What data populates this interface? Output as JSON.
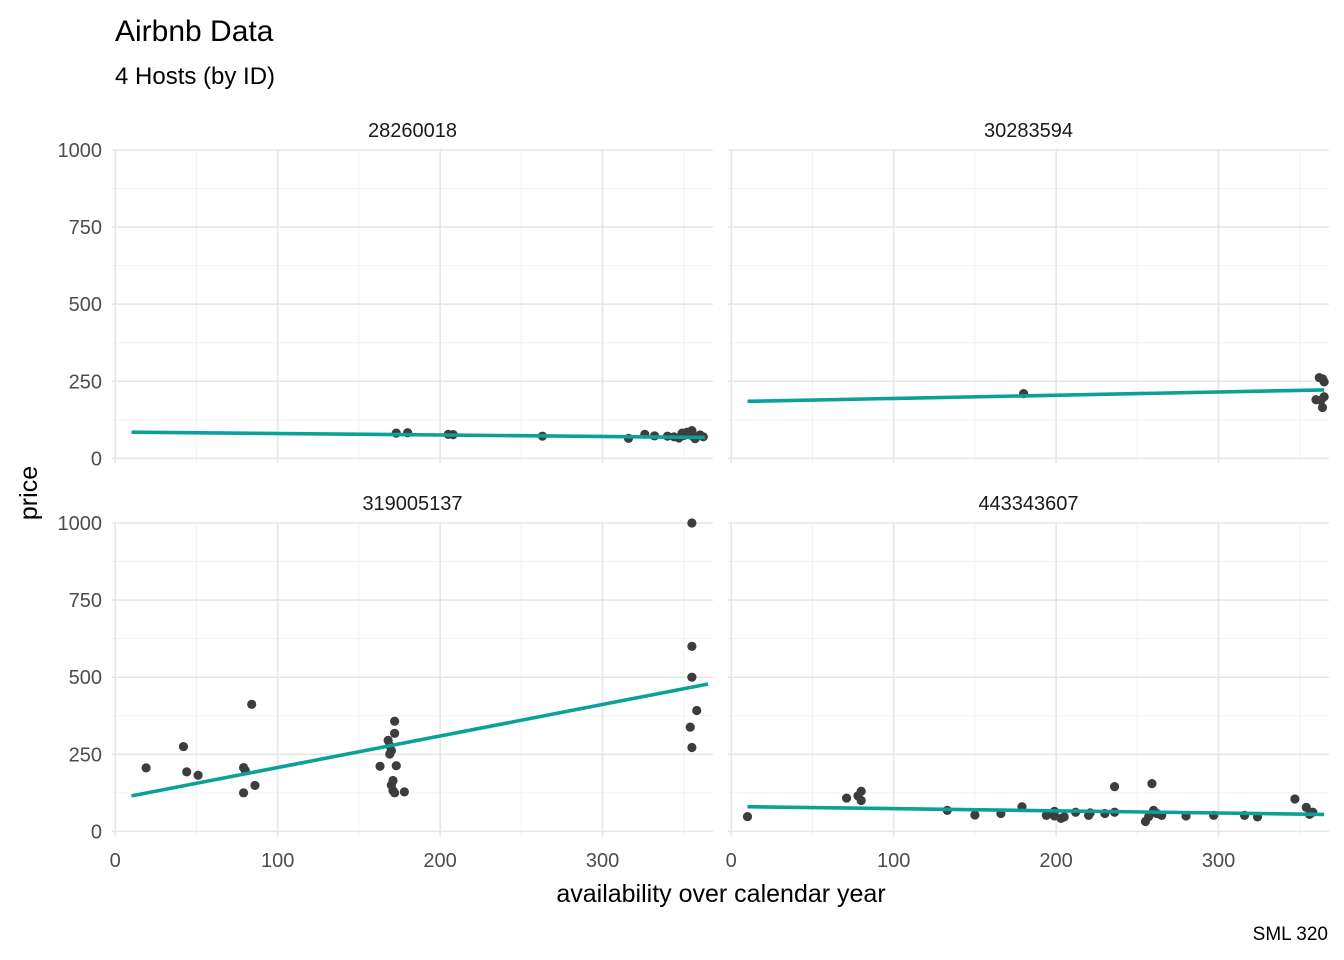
{
  "chart_data": {
    "type": "scatter",
    "title": "Airbnb Data",
    "subtitle": "4 Hosts (by ID)",
    "xlabel": "availability over calendar year",
    "ylabel": "price",
    "caption": "SML 320",
    "xlim": [
      -2,
      368
    ],
    "ylim": [
      -15,
      1000
    ],
    "x_ticks": [
      0,
      100,
      200,
      300
    ],
    "y_ticks": [
      0,
      250,
      500,
      750,
      1000
    ],
    "grid": true,
    "point_color": "#3d3d3d",
    "line_color": "#0ba197",
    "facets": [
      {
        "label": "28260018",
        "fit": {
          "x": [
            10,
            363
          ],
          "y": [
            85,
            68
          ]
        },
        "points": [
          [
            173,
            82
          ],
          [
            180,
            83
          ],
          [
            205,
            78
          ],
          [
            208,
            77
          ],
          [
            263,
            72
          ],
          [
            316,
            65
          ],
          [
            326,
            78
          ],
          [
            332,
            73
          ],
          [
            340,
            72
          ],
          [
            344,
            70
          ],
          [
            347,
            66
          ],
          [
            349,
            82
          ],
          [
            350,
            74
          ],
          [
            352,
            85
          ],
          [
            353,
            77
          ],
          [
            355,
            90
          ],
          [
            356,
            70
          ],
          [
            357,
            64
          ],
          [
            360,
            76
          ],
          [
            362,
            70
          ]
        ]
      },
      {
        "label": "30283594",
        "fit": {
          "x": [
            10,
            365
          ],
          "y": [
            185,
            222
          ]
        },
        "points": [
          [
            180,
            210
          ],
          [
            362,
            262
          ],
          [
            364,
            258
          ],
          [
            365,
            248
          ],
          [
            360,
            190
          ],
          [
            363,
            188
          ],
          [
            365,
            200
          ],
          [
            364,
            165
          ]
        ]
      },
      {
        "label": "319005137",
        "fit": {
          "x": [
            10,
            365
          ],
          "y": [
            115,
            478
          ]
        },
        "points": [
          [
            19,
            206
          ],
          [
            42,
            275
          ],
          [
            44,
            193
          ],
          [
            51,
            182
          ],
          [
            79,
            207
          ],
          [
            80,
            198
          ],
          [
            79,
            125
          ],
          [
            84,
            412
          ],
          [
            86,
            149
          ],
          [
            163,
            211
          ],
          [
            168,
            295
          ],
          [
            169,
            278
          ],
          [
            169,
            251
          ],
          [
            170,
            262
          ],
          [
            170,
            150
          ],
          [
            171,
            132
          ],
          [
            171,
            165
          ],
          [
            172,
            357
          ],
          [
            172,
            318
          ],
          [
            173,
            213
          ],
          [
            172,
            125
          ],
          [
            178,
            128
          ],
          [
            355,
            1000
          ],
          [
            355,
            600
          ],
          [
            355,
            500
          ],
          [
            358,
            392
          ],
          [
            354,
            338
          ],
          [
            355,
            272
          ]
        ]
      },
      {
        "label": "443343607",
        "fit": {
          "x": [
            10,
            365
          ],
          "y": [
            80,
            55
          ]
        },
        "points": [
          [
            10,
            48
          ],
          [
            71,
            108
          ],
          [
            78,
            115
          ],
          [
            80,
            130
          ],
          [
            80,
            100
          ],
          [
            133,
            68
          ],
          [
            150,
            53
          ],
          [
            166,
            58
          ],
          [
            179,
            80
          ],
          [
            194,
            52
          ],
          [
            199,
            65
          ],
          [
            199,
            50
          ],
          [
            203,
            42
          ],
          [
            205,
            47
          ],
          [
            212,
            62
          ],
          [
            220,
            52
          ],
          [
            221,
            60
          ],
          [
            230,
            58
          ],
          [
            236,
            62
          ],
          [
            236,
            145
          ],
          [
            255,
            32
          ],
          [
            257,
            48
          ],
          [
            259,
            155
          ],
          [
            260,
            68
          ],
          [
            262,
            58
          ],
          [
            265,
            52
          ],
          [
            280,
            50
          ],
          [
            297,
            52
          ],
          [
            316,
            52
          ],
          [
            324,
            47
          ],
          [
            347,
            105
          ],
          [
            354,
            78
          ],
          [
            356,
            55
          ],
          [
            358,
            62
          ]
        ]
      }
    ]
  }
}
